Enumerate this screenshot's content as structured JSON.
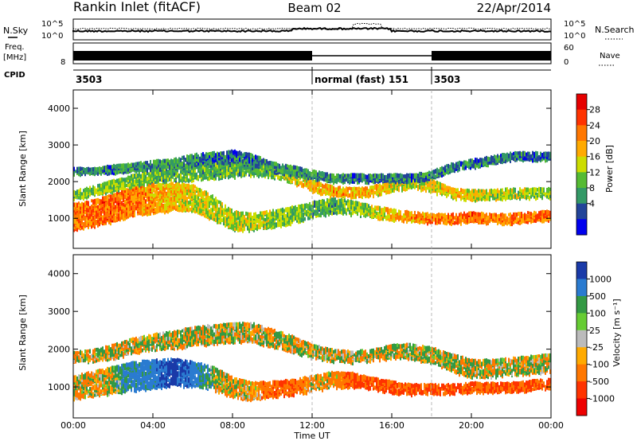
{
  "header": {
    "station": "Rankin Inlet (fitACF)",
    "beam": "Beam 02",
    "date": "22/Apr/2014"
  },
  "top_panels": {
    "nsky_label": "N.Sky",
    "nsky_ticks": [
      "10^5",
      "10^0"
    ],
    "nsearch_label": "N.Search",
    "freq_label_line1": "Freq.",
    "freq_label_line2": "[MHz]",
    "freq_ticks": [
      "8"
    ],
    "nave_ticks": [
      "60",
      "0"
    ],
    "nave_label": "Nave",
    "cpid_label": "CPID",
    "cpid_segments": [
      {
        "label": "3503",
        "start_hour": 0,
        "end_hour": 12
      },
      {
        "label": "normal (fast) 151",
        "start_hour": 12,
        "end_hour": 18
      },
      {
        "label": "3503",
        "start_hour": 18,
        "end_hour": 24
      }
    ]
  },
  "colorbars": {
    "power": {
      "label": "Power [dB]",
      "ticks": [
        "28",
        "24",
        "20",
        "16",
        "12",
        "8",
        "4"
      ],
      "colors": [
        "#e60000",
        "#ff3300",
        "#ff7700",
        "#ffaa00",
        "#ccdd00",
        "#55bb33",
        "#339966",
        "#224499",
        "#0000ee"
      ]
    },
    "velocity": {
      "label": "Velocity [m s⁻¹]",
      "ticks": [
        "1000",
        "500",
        "100",
        "25",
        "-25",
        "-100",
        "-500",
        "-1000"
      ],
      "colors": [
        "#1a3aa8",
        "#2a7bd0",
        "#339944",
        "#66cc33",
        "#bbbbbb",
        "#ffaa00",
        "#ff7700",
        "#ff3300",
        "#ee0000"
      ]
    }
  },
  "axes": {
    "x_label": "Time UT",
    "x_ticks": [
      "00:00",
      "04:00",
      "08:00",
      "12:00",
      "16:00",
      "20:00",
      "00:00"
    ],
    "y_label": "Slant Range [km]",
    "y_ticks": [
      "4000",
      "3000",
      "2000",
      "1000"
    ]
  },
  "chart_data": [
    {
      "type": "heatmap",
      "name": "power",
      "xlim_hours": [
        0,
        24
      ],
      "ylim_km": [
        180,
        4500
      ],
      "bands": [
        {
          "center_km": [
            1050,
            1150,
            1300,
            1500,
            1550,
            1600,
            1550,
            1300,
            950,
            900,
            1000,
            1100,
            1250,
            1350,
            1300,
            1200,
            1100,
            1050,
            1000,
            1000,
            1050,
            1000,
            1000,
            1050,
            1100
          ],
          "width_km": [
            700,
            700,
            750,
            800,
            800,
            750,
            700,
            650,
            500,
            450,
            450,
            450,
            400,
            400,
            350,
            300,
            300,
            250,
            250,
            250,
            250,
            250,
            250,
            250,
            250
          ],
          "value_db": [
            22,
            23,
            24,
            22,
            20,
            18,
            16,
            14,
            14,
            14,
            12,
            12,
            10,
            10,
            12,
            14,
            18,
            20,
            22,
            22,
            24,
            22,
            22,
            22,
            22
          ]
        },
        {
          "center_km": [
            1650,
            1750,
            1900,
            2050,
            2150,
            2200,
            2250,
            2300,
            2350,
            2400,
            2300,
            2150,
            1900,
            1750,
            1700,
            1750,
            1900,
            2000,
            1900,
            1700,
            1650,
            1650,
            1700,
            1700,
            1700
          ],
          "width_km": [
            200,
            250,
            300,
            300,
            350,
            350,
            400,
            400,
            400,
            400,
            350,
            350,
            300,
            250,
            250,
            250,
            300,
            300,
            300,
            250,
            250,
            250,
            250,
            250,
            250
          ],
          "value_db": [
            12,
            12,
            12,
            12,
            10,
            10,
            10,
            10,
            10,
            10,
            12,
            16,
            18,
            20,
            20,
            18,
            16,
            14,
            16,
            18,
            16,
            14,
            14,
            12,
            12
          ]
        },
        {
          "center_km": [
            2300,
            2300,
            2350,
            2400,
            2450,
            2500,
            2600,
            2650,
            2700,
            2600,
            2400,
            2300,
            2200,
            2100,
            2100,
            2100,
            2100,
            2100,
            2200,
            2400,
            2500,
            2600,
            2700,
            2700,
            2700
          ],
          "width_km": [
            150,
            150,
            200,
            200,
            250,
            250,
            300,
            300,
            300,
            300,
            250,
            250,
            200,
            200,
            200,
            200,
            200,
            200,
            200,
            200,
            200,
            200,
            200,
            200,
            200
          ],
          "value_db": [
            6,
            6,
            6,
            8,
            8,
            8,
            6,
            6,
            6,
            6,
            8,
            8,
            8,
            8,
            6,
            6,
            6,
            6,
            6,
            6,
            6,
            6,
            6,
            6,
            6
          ]
        }
      ]
    },
    {
      "type": "heatmap",
      "name": "velocity",
      "xlim_hours": [
        0,
        24
      ],
      "ylim_km": [
        180,
        4500
      ],
      "bands": [
        {
          "center_km": [
            1000,
            1100,
            1200,
            1300,
            1350,
            1400,
            1350,
            1250,
            1000,
            900,
            950,
            1000,
            1100,
            1200,
            1200,
            1100,
            1000,
            950,
            950,
            950,
            1000,
            1000,
            1000,
            1050,
            1100
          ],
          "width_km": [
            600,
            650,
            700,
            750,
            750,
            700,
            650,
            600,
            500,
            450,
            400,
            400,
            400,
            400,
            350,
            300,
            300,
            250,
            250,
            250,
            250,
            250,
            250,
            250,
            250
          ],
          "value_ms": [
            -100,
            -100,
            100,
            500,
            500,
            1000,
            500,
            100,
            -100,
            -100,
            -500,
            -500,
            -100,
            -100,
            -500,
            -500,
            -500,
            -500,
            -500,
            -500,
            -500,
            -500,
            -500,
            -500,
            -500
          ]
        },
        {
          "center_km": [
            1800,
            1850,
            1950,
            2100,
            2200,
            2250,
            2350,
            2400,
            2450,
            2450,
            2300,
            2150,
            1950,
            1850,
            1800,
            1850,
            1950,
            1950,
            1850,
            1650,
            1500,
            1500,
            1550,
            1600,
            1650
          ],
          "width_km": [
            250,
            300,
            350,
            400,
            400,
            450,
            500,
            500,
            500,
            500,
            450,
            400,
            350,
            300,
            300,
            300,
            350,
            400,
            400,
            450,
            450,
            450,
            450,
            450,
            450
          ],
          "value_ms": [
            0,
            0,
            0,
            0,
            0,
            0,
            0,
            0,
            0,
            0,
            0,
            0,
            0,
            0,
            0,
            0,
            0,
            0,
            0,
            0,
            0,
            0,
            0,
            0,
            0
          ]
        }
      ]
    }
  ]
}
